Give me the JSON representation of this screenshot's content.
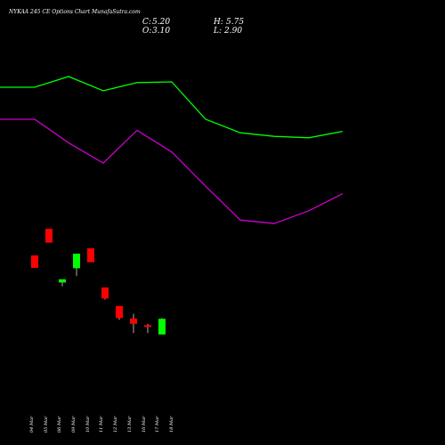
{
  "chart_data": {
    "type": "candlestick",
    "title": "NYKAA 245 CE Options  Chart MunafaSutra.com",
    "ohlc_summary": {
      "close_label": "C:",
      "close": "5.20",
      "high_label": "H:",
      "high": "5.75",
      "open_label": "O:",
      "open": "3.10",
      "low_label": "L:",
      "low": "2.90"
    },
    "x_labels": [
      "04 Mar",
      "05 Mar",
      "06 Mar",
      "09 Mar",
      "10 Mar",
      "11 Mar",
      "12 Mar",
      "13 Mar",
      "16 Mar",
      "17 Mar",
      "18 Mar"
    ],
    "candles": [
      {
        "date": "04 Mar",
        "open": 18.0,
        "high": 18.0,
        "low": 14.5,
        "close": 14.5
      },
      {
        "date": "05 Mar",
        "open": 25.5,
        "high": 25.5,
        "low": 21.6,
        "close": 21.6
      },
      {
        "date": "06 Mar",
        "open": null,
        "high": null,
        "low": null,
        "close": null
      },
      {
        "date": "09 Mar",
        "open": 10.4,
        "high": 11.3,
        "low": 9.3,
        "close": 11.3
      },
      {
        "date": "10 Mar",
        "open": 14.4,
        "high": 18.5,
        "low": 12.2,
        "close": 18.5
      },
      {
        "date": "11 Mar",
        "open": 20.0,
        "high": 20.0,
        "low": 16.1,
        "close": 16.1
      },
      {
        "date": "12 Mar",
        "open": 9.0,
        "high": 9.0,
        "low": 5.6,
        "close": 5.9
      },
      {
        "date": "13 Mar",
        "open": 3.8,
        "high": 3.8,
        "low": -0.1,
        "close": 0.4
      },
      {
        "date": "16 Mar",
        "open": 0.3,
        "high": 1.6,
        "low": -3.8,
        "close": -1.2
      },
      {
        "date": "17 Mar",
        "open": -1.6,
        "high": -1.2,
        "low": -3.8,
        "close": -1.9
      },
      {
        "date": "18 Mar",
        "open": -4.2,
        "high": 0.4,
        "low": -4.2,
        "close": 0.2
      }
    ],
    "series": [
      {
        "color": "#00ff00",
        "values": [
          1,
          1,
          4,
          0,
          2.3,
          2.5,
          -8,
          -11.8,
          -12.8,
          -13.2,
          -11.4
        ]
      },
      {
        "color": "#cc00cc",
        "values": [
          -8,
          -8,
          -14.6,
          -20.3,
          -11.1,
          -17.2,
          -26.8,
          -36.3,
          -37.3,
          -33.7,
          -28.9
        ]
      }
    ],
    "colors": {
      "up": "#00ff00",
      "down": "#ff0000",
      "background": "#000000",
      "text": "#ffffff"
    },
    "grid": false,
    "legend": "none"
  }
}
